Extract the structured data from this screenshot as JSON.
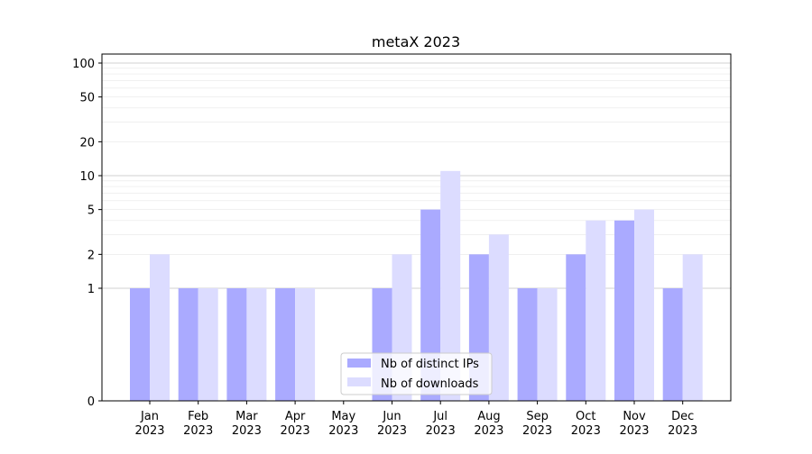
{
  "chart_data": {
    "type": "bar",
    "title": "metaX 2023",
    "xlabel": "",
    "ylabel": "",
    "y_scale": "symlog",
    "ylim": [
      0,
      150
    ],
    "y_ticks": [
      0,
      1,
      2,
      5,
      10,
      20,
      50,
      100
    ],
    "grid": true,
    "legend_position": "lower-center",
    "categories": [
      "Jan\n2023",
      "Feb\n2023",
      "Mar\n2023",
      "Apr\n2023",
      "May\n2023",
      "Jun\n2023",
      "Jul\n2023",
      "Aug\n2023",
      "Sep\n2023",
      "Oct\n2023",
      "Nov\n2023",
      "Dec\n2023"
    ],
    "series": [
      {
        "name": "Nb of distinct IPs",
        "color": "#aaaaff",
        "values": [
          1,
          1,
          1,
          1,
          0,
          1,
          5,
          2,
          1,
          2,
          4,
          1
        ]
      },
      {
        "name": "Nb of downloads",
        "color": "#dcdcff",
        "values": [
          2,
          1,
          1,
          1,
          0,
          2,
          11,
          3,
          1,
          4,
          5,
          2
        ]
      }
    ]
  }
}
